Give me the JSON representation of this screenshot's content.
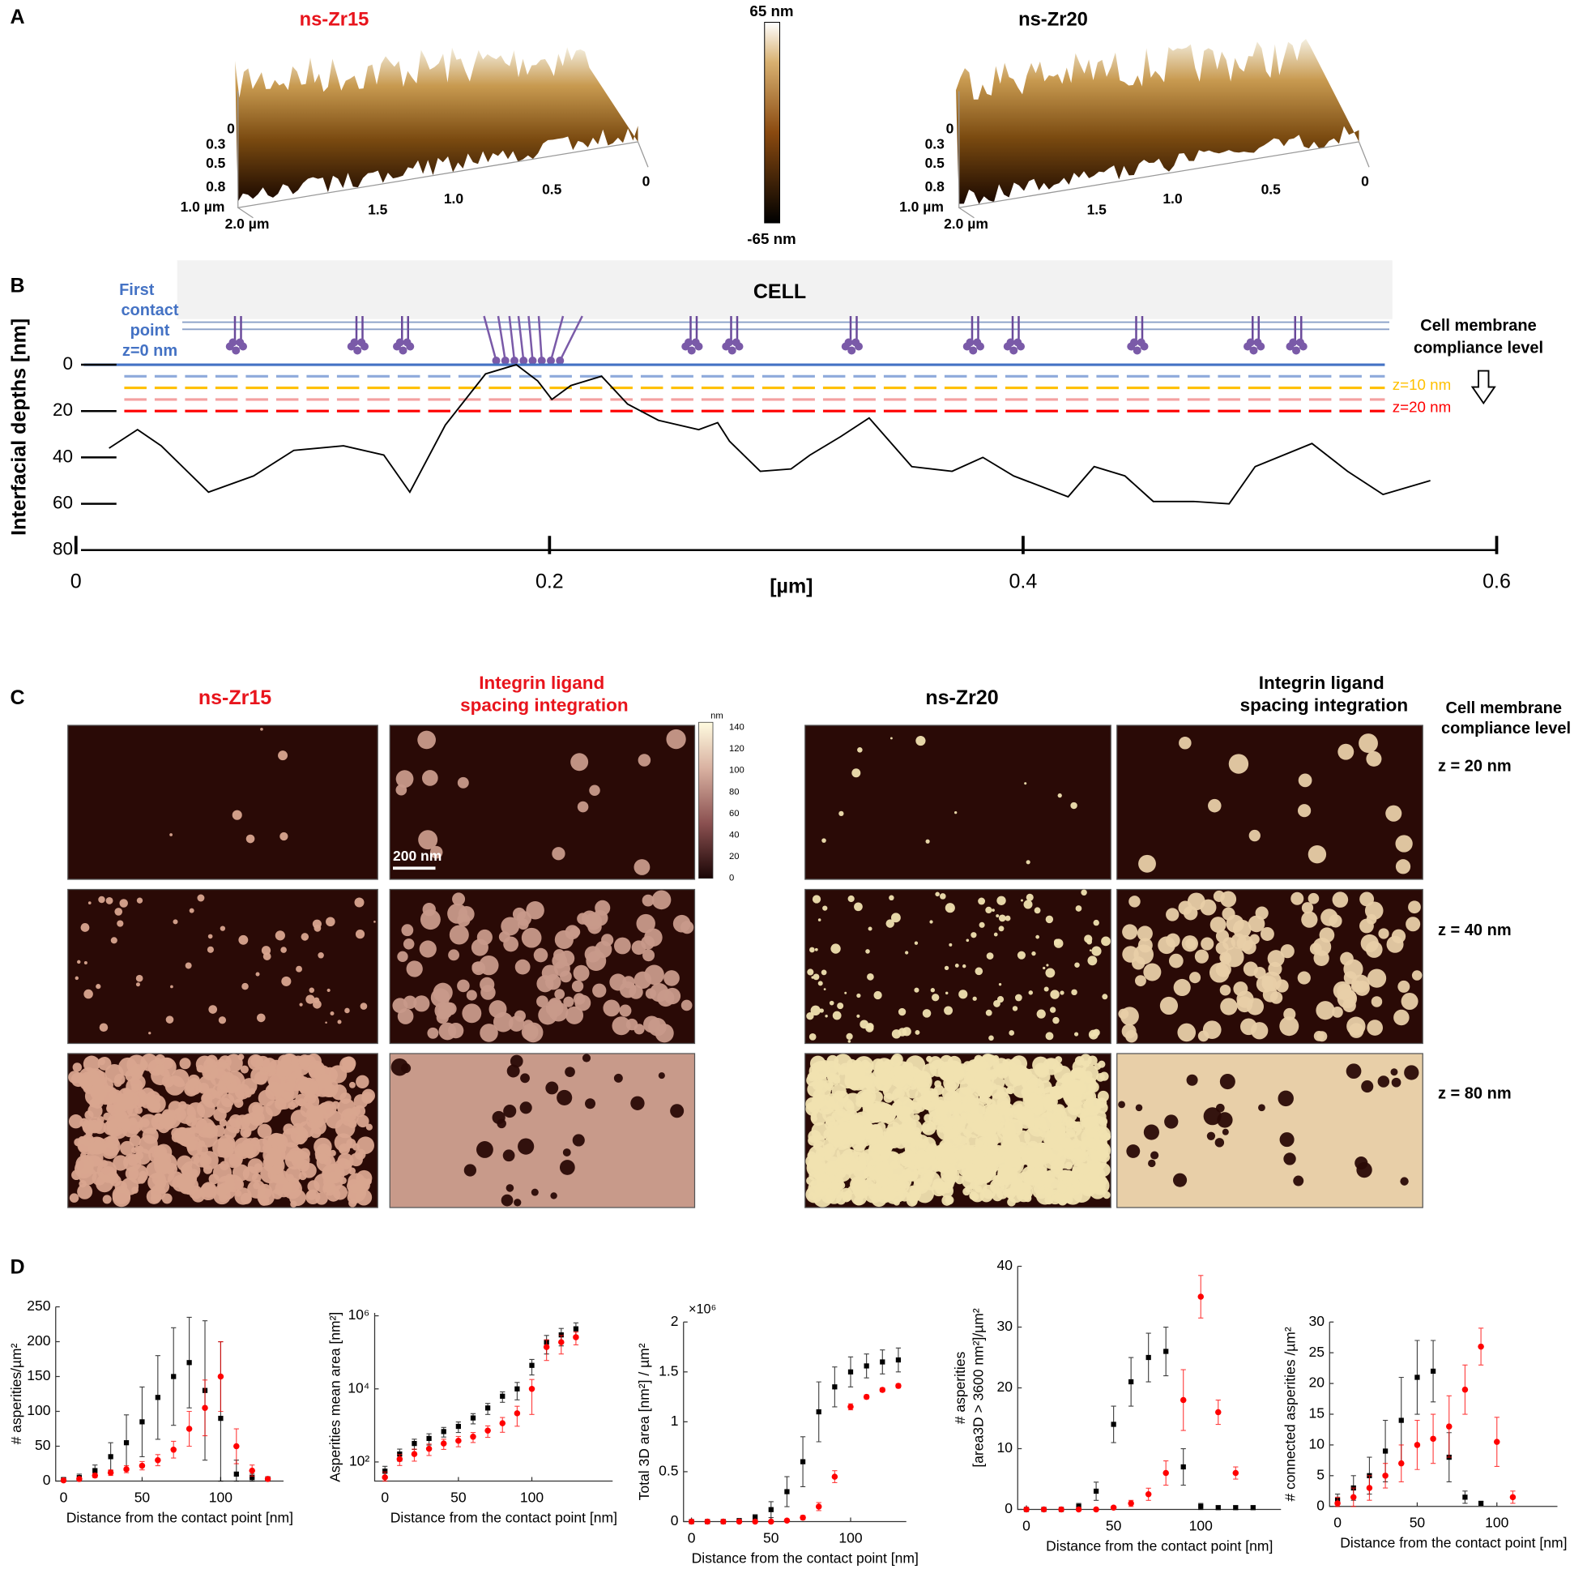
{
  "panel_a": {
    "label": "A",
    "left_title": "ns-Zr15",
    "right_title": "ns-Zr20",
    "colorbar_max": "65 nm",
    "colorbar_min": "-65 nm",
    "left_axis_labels": [
      "0",
      "0.3",
      "0.5",
      "0.8",
      "1.0 µm",
      "2.0 µm",
      "1.5",
      "1.0",
      "0.5",
      "0"
    ],
    "right_axis_labels": [
      "0",
      "0.3",
      "0.5",
      "0.8",
      "1.0 µm",
      "2.0 µm",
      "1.5",
      "1.0",
      "0.5",
      "0"
    ]
  },
  "panel_c": {
    "label": "C",
    "titles": [
      "ns-Zr15",
      "Integrin ligand spacing integration",
      "ns-Zr20",
      "Integrin ligand spacing integration"
    ],
    "side_title": "Cell membrane compliance level",
    "row_labels": [
      "z = 20 nm",
      "z = 40 nm",
      "z = 80 nm"
    ],
    "colorbar_unit": "nm",
    "colorbar_ticks": [
      140,
      120,
      100,
      80,
      60,
      40,
      20,
      0
    ],
    "scale_bar": "200 nm"
  },
  "panel_d_label": "D",
  "chart_data": [
    {
      "type": "line",
      "label": "B",
      "xlabel": "[µm]",
      "ylabel": "Interfacial depths [nm]",
      "color": "#000000",
      "x": [
        0.014,
        0.026,
        0.036,
        0.056,
        0.075,
        0.092,
        0.113,
        0.13,
        0.141,
        0.156,
        0.173,
        0.186,
        0.195,
        0.201,
        0.209,
        0.222,
        0.233,
        0.246,
        0.263,
        0.271,
        0.276,
        0.289,
        0.302,
        0.31,
        0.323,
        0.335,
        0.353,
        0.37,
        0.383,
        0.396,
        0.419,
        0.43,
        0.443,
        0.455,
        0.472,
        0.487,
        0.498,
        0.522,
        0.537,
        0.552,
        0.572
      ],
      "values": [
        36,
        28,
        35,
        55,
        48,
        37,
        35,
        39,
        55,
        26,
        4,
        0,
        7,
        15,
        9,
        5,
        17,
        24,
        28,
        25,
        33,
        46,
        45,
        39,
        31,
        23,
        44,
        46,
        40,
        48,
        57,
        44,
        48,
        59,
        59,
        60,
        44,
        34,
        46,
        56,
        50
      ],
      "xlim": [
        0,
        0.6
      ],
      "ylim": [
        0,
        80
      ],
      "invert_y": true,
      "xticks": [
        0,
        0.2,
        0.4,
        0.6
      ],
      "yticks": [
        0,
        20,
        40,
        60,
        80
      ],
      "levels": [
        0,
        5,
        10,
        15,
        20
      ],
      "level_colors": [
        "#4472c4",
        "#8eaadb",
        "#ffc000",
        "#f4a0a0",
        "#ff0000"
      ],
      "level_dashed": [
        false,
        true,
        true,
        true,
        true
      ],
      "annotations": {
        "cell": "CELL",
        "first_contact": [
          "First",
          "contact",
          "point",
          "z=0 nm"
        ],
        "compliance": [
          "Cell membrane",
          "compliance level"
        ],
        "z10": "z=10 nm",
        "z20": "z=20 nm"
      }
    },
    {
      "type": "scatter",
      "xlabel": "Distance from the contact point [nm]",
      "ylabel": [
        "# asperities/µm²"
      ],
      "xlim": [
        -5,
        140
      ],
      "ylim": [
        0,
        250
      ],
      "xticks": [
        0,
        50,
        100
      ],
      "yticks": [
        0,
        50,
        100,
        150,
        200,
        250
      ],
      "series": [
        {
          "color": "#000000",
          "marker": "square",
          "x": [
            0,
            10,
            20,
            30,
            40,
            50,
            60,
            70,
            80,
            90,
            100,
            110,
            120,
            130
          ],
          "values": [
            2,
            5,
            15,
            35,
            55,
            85,
            120,
            150,
            170,
            130,
            90,
            10,
            5,
            3
          ],
          "errors": [
            3,
            5,
            8,
            20,
            40,
            50,
            60,
            70,
            65,
            100,
            110,
            20,
            5,
            3
          ]
        },
        {
          "color": "#ff0000",
          "marker": "circle",
          "x": [
            0,
            10,
            20,
            30,
            40,
            50,
            60,
            70,
            80,
            90,
            100,
            110,
            120,
            130
          ],
          "values": [
            1,
            3,
            8,
            12,
            17,
            22,
            30,
            45,
            75,
            105,
            150,
            50,
            15,
            3
          ],
          "errors": [
            1,
            2,
            3,
            4,
            5,
            6,
            8,
            12,
            25,
            40,
            50,
            25,
            8,
            2
          ]
        }
      ]
    },
    {
      "type": "scatter",
      "xlabel": "Distance from the contact point [nm]",
      "ylabel": [
        "Asperities mean area [nm²]"
      ],
      "xlim": [
        -7,
        155
      ],
      "ylim": [
        30,
        1200000
      ],
      "log_y": true,
      "xticks": [
        0,
        50,
        100
      ],
      "yticks": [
        {
          "value": 100,
          "label": "10²"
        },
        {
          "value": 10000,
          "label": "10⁴"
        },
        {
          "value": 1000000,
          "label": "10⁶"
        }
      ],
      "series": [
        {
          "color": "#000000",
          "marker": "square",
          "x": [
            0,
            10,
            20,
            30,
            40,
            50,
            60,
            70,
            80,
            90,
            100,
            110,
            120,
            130
          ],
          "values": [
            56,
            165,
            320,
            440,
            680,
            940,
            1600,
            3000,
            6300,
            10000,
            44000,
            190000,
            300000,
            440000
          ],
          "errors": [
            20,
            60,
            100,
            150,
            200,
            300,
            500,
            1000,
            2000,
            5000,
            20000,
            100000,
            150000,
            200000
          ]
        },
        {
          "color": "#ff0000",
          "marker": "circle",
          "x": [
            0,
            10,
            20,
            30,
            40,
            50,
            60,
            70,
            80,
            90,
            100,
            110,
            120,
            130
          ],
          "values": [
            38,
            120,
            165,
            230,
            320,
            380,
            490,
            720,
            1150,
            2150,
            10000,
            140000,
            190000,
            260000
          ],
          "errors": [
            15,
            40,
            60,
            80,
            100,
            120,
            150,
            250,
            500,
            1200,
            8000,
            80000,
            100000,
            100000
          ]
        }
      ]
    },
    {
      "type": "scatter",
      "xlabel": "Distance from the contact point [nm]",
      "ylabel": [
        "Total 3D area [nm²] / µm²"
      ],
      "multiplier": "×10⁶",
      "xlim": [
        -5,
        135
      ],
      "ylim": [
        0,
        2
      ],
      "xticks": [
        0,
        50,
        100
      ],
      "yticks": [
        0,
        0.5,
        1,
        1.5,
        2
      ],
      "series": [
        {
          "color": "#000000",
          "marker": "square",
          "x": [
            0,
            10,
            20,
            30,
            40,
            50,
            60,
            70,
            80,
            90,
            100,
            110,
            120,
            130
          ],
          "values": [
            0,
            0,
            0,
            0.01,
            0.04,
            0.12,
            0.3,
            0.6,
            1.1,
            1.35,
            1.5,
            1.56,
            1.6,
            1.62
          ],
          "errors": [
            0,
            0,
            0,
            0.01,
            0.03,
            0.08,
            0.15,
            0.25,
            0.3,
            0.2,
            0.15,
            0.12,
            0.12,
            0.12
          ]
        },
        {
          "color": "#ff0000",
          "marker": "circle",
          "x": [
            0,
            10,
            20,
            30,
            40,
            50,
            60,
            70,
            80,
            90,
            100,
            110,
            120,
            130
          ],
          "values": [
            0,
            0,
            0,
            0,
            0,
            0,
            0.01,
            0.04,
            0.15,
            0.45,
            1.15,
            1.25,
            1.32,
            1.36
          ],
          "errors": [
            0,
            0,
            0,
            0,
            0,
            0,
            0.01,
            0.02,
            0.04,
            0.06,
            0.03,
            0.02,
            0.02,
            0.02
          ]
        }
      ]
    },
    {
      "type": "scatter",
      "xlabel": "Distance from the contact point [nm]",
      "ylabel": [
        "# asperities",
        "[area3D > 3600 nm²]/µm²"
      ],
      "xlim": [
        -5,
        146
      ],
      "ylim": [
        0,
        40
      ],
      "xticks": [
        0,
        50,
        100
      ],
      "yticks": [
        0,
        10,
        20,
        30,
        40
      ],
      "series": [
        {
          "color": "#000000",
          "marker": "square",
          "x": [
            0,
            10,
            20,
            30,
            40,
            50,
            60,
            70,
            80,
            90,
            100,
            110,
            120,
            130
          ],
          "values": [
            0,
            0,
            0,
            0.5,
            3,
            14,
            21,
            25,
            26,
            7,
            0.5,
            0.3,
            0.3,
            0.3
          ],
          "errors": [
            0,
            0,
            0,
            0.5,
            1.5,
            3,
            4,
            4,
            4,
            3,
            0.5,
            0.3,
            0.3,
            0.3
          ]
        },
        {
          "color": "#ff0000",
          "marker": "circle",
          "x": [
            0,
            10,
            20,
            30,
            40,
            50,
            60,
            70,
            80,
            90,
            100,
            110,
            120,
            130
          ],
          "values": [
            0,
            0,
            0,
            0,
            0,
            0.3,
            1,
            2.5,
            6,
            18,
            35,
            16,
            6,
            null
          ],
          "errors": [
            0,
            0,
            0,
            0,
            0,
            0.2,
            0.5,
            1,
            2,
            5,
            3.5,
            2,
            1,
            null
          ]
        }
      ]
    },
    {
      "type": "scatter",
      "xlabel": "Distance from the contact point [nm]",
      "ylabel": [
        "# connected asperities /µm²"
      ],
      "xlim": [
        -5,
        138
      ],
      "ylim": [
        0,
        30
      ],
      "xticks": [
        0,
        50,
        100
      ],
      "yticks": [
        0,
        5,
        10,
        15,
        20,
        25,
        30
      ],
      "series": [
        {
          "color": "#000000",
          "marker": "square",
          "x": [
            0,
            10,
            20,
            30,
            40,
            50,
            60,
            70,
            80,
            90,
            100,
            110,
            120,
            130
          ],
          "values": [
            1,
            3,
            5,
            9,
            14,
            21,
            22,
            8,
            1.5,
            0.5,
            null,
            null,
            null,
            null
          ],
          "errors": [
            1,
            2,
            3,
            5,
            7,
            6,
            5,
            4,
            1,
            0.3,
            null,
            null,
            null,
            null
          ]
        },
        {
          "color": "#ff0000",
          "marker": "circle",
          "x": [
            0,
            10,
            20,
            30,
            40,
            50,
            60,
            70,
            80,
            90,
            100,
            110,
            120,
            130
          ],
          "values": [
            0.5,
            1.5,
            3,
            5,
            7,
            10,
            11,
            13,
            19,
            26,
            10.5,
            1.5,
            null,
            null
          ],
          "errors": [
            1,
            1.5,
            2,
            2,
            3,
            4,
            4,
            5,
            4,
            3,
            4,
            1,
            null,
            null
          ]
        }
      ]
    }
  ]
}
